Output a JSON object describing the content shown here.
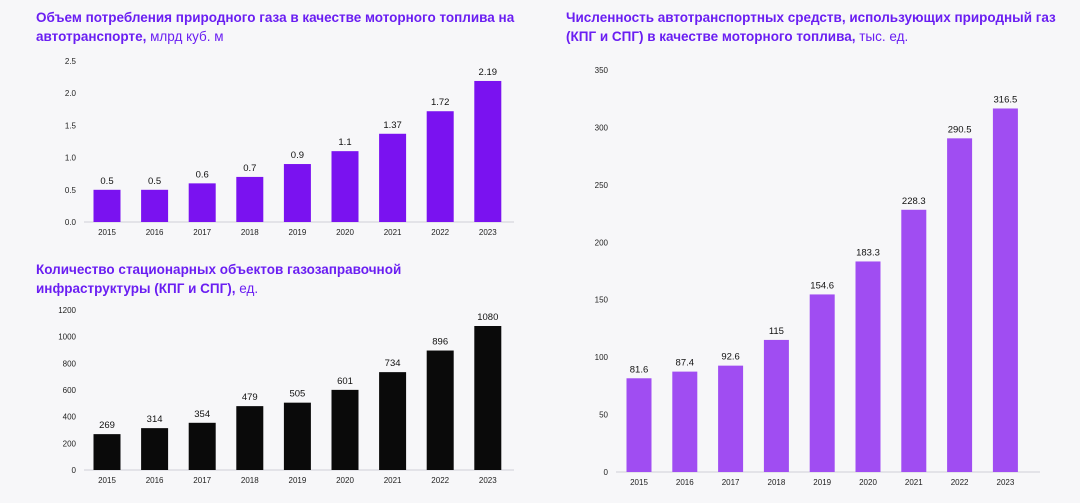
{
  "chart_data": [
    {
      "type": "bar",
      "title": "Объем потребления природного газа в качестве моторного топлива на автотранспорте,",
      "unit": " млрд куб. м",
      "categories": [
        "2015",
        "2016",
        "2017",
        "2018",
        "2019",
        "2020",
        "2021",
        "2022",
        "2023"
      ],
      "values": [
        0.5,
        0.5,
        0.6,
        0.7,
        0.9,
        1.1,
        1.37,
        1.72,
        2.19
      ],
      "labels": [
        "0.5",
        "0.5",
        "0.6",
        "0.7",
        "0.9",
        "1.1",
        "1.37",
        "1.72",
        "2.19"
      ],
      "ylim": [
        0,
        2.5
      ],
      "yticks": [
        "0.0",
        "0.5",
        "1.0",
        "1.5",
        "2.0",
        "2.5"
      ],
      "ytick_values": [
        0,
        0.5,
        1.0,
        1.5,
        2.0,
        2.5
      ],
      "color": "#7a12f0"
    },
    {
      "type": "bar",
      "title": "Количество стационарных объектов газозаправочной инфраструктуры (КПГ и СПГ),",
      "unit": " ед.",
      "categories": [
        "2015",
        "2016",
        "2017",
        "2018",
        "2019",
        "2020",
        "2021",
        "2022",
        "2023"
      ],
      "values": [
        269,
        314,
        354,
        479,
        505,
        601,
        734,
        896,
        1080
      ],
      "labels": [
        "269",
        "314",
        "354",
        "479",
        "505",
        "601",
        "734",
        "896",
        "1080"
      ],
      "ylim": [
        0,
        1200
      ],
      "yticks": [
        "0",
        "200",
        "400",
        "600",
        "800",
        "1000",
        "1200"
      ],
      "ytick_values": [
        0,
        200,
        400,
        600,
        800,
        1000,
        1200
      ],
      "color": "#0a0a0a"
    },
    {
      "type": "bar",
      "title": "Численность автотранспортных средств, использующих природный газ (КПГ и СПГ) в качестве моторного топлива,",
      "unit": " тыс. ед.",
      "categories": [
        "2015",
        "2016",
        "2017",
        "2018",
        "2019",
        "2020",
        "2021",
        "2022",
        "2023"
      ],
      "values": [
        81.6,
        87.4,
        92.6,
        115,
        154.6,
        183.3,
        228.3,
        290.5,
        316.5
      ],
      "labels": [
        "81.6",
        "87.4",
        "92.6",
        "115",
        "154.6",
        "183.3",
        "228.3",
        "290.5",
        "316.5"
      ],
      "ylim": [
        0,
        350
      ],
      "yticks": [
        "0",
        "50",
        "100",
        "150",
        "200",
        "250",
        "300",
        "350"
      ],
      "ytick_values": [
        0,
        50,
        100,
        150,
        200,
        250,
        300,
        350
      ],
      "color": "#a04df2"
    }
  ]
}
